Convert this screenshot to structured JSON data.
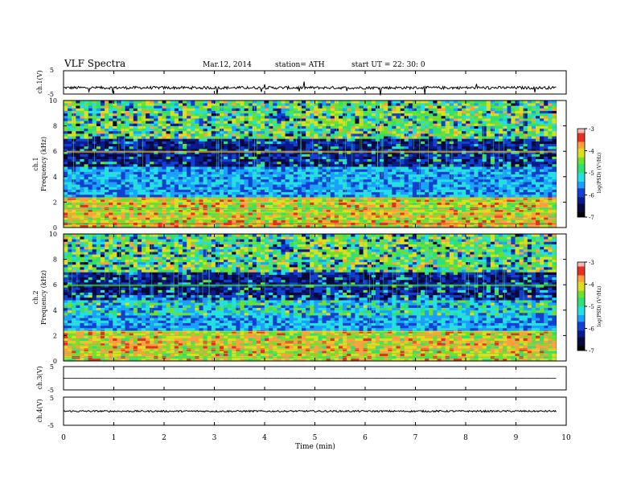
{
  "header": {
    "title": "VLF  Spectra",
    "date": "Mar.12, 2014",
    "station": "station= ATH",
    "start": "start  UT =   22: 30: 0"
  },
  "colors": {
    "colormap": [
      "#000000",
      "#08083a",
      "#0a1a8c",
      "#1240d0",
      "#1aa0ff",
      "#25e0e0",
      "#30e070",
      "#70e030",
      "#d8e020",
      "#ffa040",
      "#e83020",
      "#f8b8b8"
    ]
  },
  "chart_data": [
    {
      "type": "line",
      "panel": "ch1",
      "ylabel": "ch.1(V)",
      "yticks": [
        "5",
        "-5"
      ],
      "ylim": [
        -5,
        5
      ],
      "xlim": [
        0,
        10
      ],
      "data_xmax": 9.8,
      "trace_baseline": -2.3,
      "trace_noise_amplitude": 0.6
    },
    {
      "type": "heatmap",
      "panel": "ch1-spectrogram",
      "ylabel_channel": "ch.1",
      "ylabel": "Frequency  (kHz)",
      "yticks": [
        "0",
        "2",
        "4",
        "6",
        "8",
        "10"
      ],
      "ylim": [
        0,
        10
      ],
      "xlim": [
        0,
        10
      ],
      "data_xmax": 9.8,
      "colorbar_label": "log(PSD) (V²/Hz)",
      "colorbar_ticks": [
        "-3",
        "-4",
        "-5",
        "-6",
        "-7"
      ],
      "colorbar_range": [
        -7,
        -3
      ]
    },
    {
      "type": "heatmap",
      "panel": "ch2-spectrogram",
      "ylabel_channel": "ch.2",
      "ylabel": "Frequency  (kHz)",
      "yticks": [
        "0",
        "2",
        "4",
        "6",
        "8",
        "10"
      ],
      "ylim": [
        0,
        10
      ],
      "xlim": [
        0,
        10
      ],
      "data_xmax": 9.8,
      "colorbar_label": "log(PSD) (V²/Hz)",
      "colorbar_ticks": [
        "-3",
        "-4",
        "-5",
        "-6",
        "-7"
      ],
      "colorbar_range": [
        -7,
        -3
      ]
    },
    {
      "type": "line",
      "panel": "ch3",
      "ylabel": "ch.3(V)",
      "yticks": [
        "5",
        "-5"
      ],
      "ylim": [
        -5,
        5
      ],
      "xlim": [
        0,
        10
      ],
      "data_xmax": 9.8,
      "trace_baseline": 0,
      "trace_noise_amplitude": 0.05
    },
    {
      "type": "line",
      "panel": "ch4",
      "ylabel": "ch.4(V)",
      "yticks": [
        "5",
        "-5"
      ],
      "ylim": [
        -5,
        5
      ],
      "xlim": [
        0,
        10
      ],
      "data_xmax": 9.8,
      "trace_baseline": 0,
      "trace_noise_amplitude": 0.3
    }
  ],
  "xaxis": {
    "label": "Time  (min)",
    "ticks": [
      "0",
      "1",
      "2",
      "3",
      "4",
      "5",
      "6",
      "7",
      "8",
      "9",
      "10"
    ]
  }
}
